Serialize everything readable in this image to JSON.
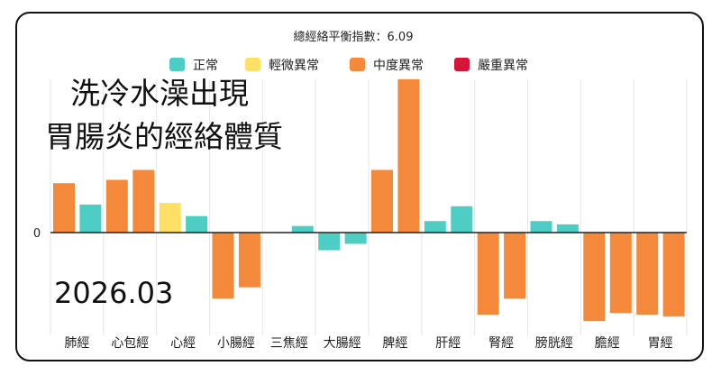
{
  "overlay": {
    "heading_line_1": "洗冷水澡出現",
    "heading_line_2": "胃腸炎的經絡體質",
    "date": "2026.03"
  },
  "chart_data": {
    "type": "bar",
    "title": "總經絡平衡指數：6.09",
    "categories": [
      "肺經",
      "心包經",
      "心經",
      "小腸經",
      "三焦經",
      "大腸經",
      "脾經",
      "肝經",
      "腎經",
      "膀胱經",
      "膽經",
      "胃經"
    ],
    "legend": [
      {
        "name": "正常",
        "color": "#4ecdc4"
      },
      {
        "name": "輕微異常",
        "color": "#ffe066"
      },
      {
        "name": "中度異常",
        "color": "#f4893b"
      },
      {
        "name": "嚴重異常",
        "color": "#d7153a"
      }
    ],
    "bars": [
      {
        "category": "肺經",
        "value": 30,
        "level": "中度異常"
      },
      {
        "category": "肺經",
        "value": 17,
        "level": "正常"
      },
      {
        "category": "心包經",
        "value": 32,
        "level": "中度異常"
      },
      {
        "category": "心包經",
        "value": 38,
        "level": "中度異常"
      },
      {
        "category": "心經",
        "value": 18,
        "level": "輕微異常"
      },
      {
        "category": "心經",
        "value": 10,
        "level": "正常"
      },
      {
        "category": "小腸經",
        "value": -41,
        "level": "中度異常"
      },
      {
        "category": "小腸經",
        "value": -34,
        "level": "中度異常"
      },
      {
        "category": "三焦經",
        "value": 0,
        "level": "正常"
      },
      {
        "category": "三焦經",
        "value": 4,
        "level": "正常"
      },
      {
        "category": "大腸經",
        "value": -11,
        "level": "正常"
      },
      {
        "category": "大腸經",
        "value": -7,
        "level": "正常"
      },
      {
        "category": "脾經",
        "value": 38,
        "level": "中度異常"
      },
      {
        "category": "脾經",
        "value": 93,
        "level": "中度異常"
      },
      {
        "category": "肝經",
        "value": 7,
        "level": "正常"
      },
      {
        "category": "肝經",
        "value": 16,
        "level": "正常"
      },
      {
        "category": "腎經",
        "value": -51,
        "level": "中度異常"
      },
      {
        "category": "腎經",
        "value": -41,
        "level": "中度異常"
      },
      {
        "category": "膀胱經",
        "value": 7,
        "level": "正常"
      },
      {
        "category": "膀胱經",
        "value": 5,
        "level": "正常"
      },
      {
        "category": "膽經",
        "value": -55,
        "level": "中度異常"
      },
      {
        "category": "膽經",
        "value": -50,
        "level": "中度異常"
      },
      {
        "category": "胃經",
        "value": -51,
        "level": "中度異常"
      },
      {
        "category": "胃經",
        "value": -52,
        "level": "中度異常"
      }
    ],
    "y_ticks": [
      0
    ],
    "ylim": [
      -56,
      93
    ],
    "grid": {
      "vertical": true,
      "horizontal": false
    },
    "legend_position": "top-center"
  }
}
